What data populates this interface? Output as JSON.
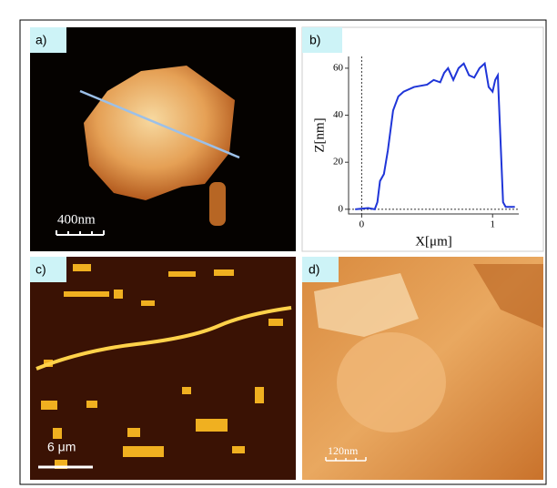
{
  "panels": [
    {
      "label": "a)",
      "scale_bar": "400nm"
    },
    {
      "label": "b)"
    },
    {
      "label": "c)",
      "scale_bar": "6 μm"
    },
    {
      "label": "d)",
      "scale_bar": "120nm"
    }
  ],
  "chart_data": {
    "type": "line",
    "x_label": "X[μm]",
    "y_label": "Z[nm]",
    "color": "#1f35d8",
    "x": [
      -0.05,
      0.05,
      0.1,
      0.12,
      0.14,
      0.17,
      0.2,
      0.24,
      0.28,
      0.32,
      0.4,
      0.5,
      0.55,
      0.6,
      0.63,
      0.66,
      0.7,
      0.74,
      0.78,
      0.82,
      0.86,
      0.9,
      0.94,
      0.97,
      1.0,
      1.02,
      1.04,
      1.06,
      1.08,
      1.1,
      1.17
    ],
    "values": [
      0,
      0.5,
      0,
      3,
      12,
      15,
      25,
      42,
      48,
      50,
      52,
      53,
      55,
      54,
      58,
      60,
      55,
      60,
      62,
      57,
      56,
      60,
      62,
      52,
      50,
      55,
      57,
      30,
      3,
      1,
      1
    ],
    "xlim": [
      -0.1,
      1.2
    ],
    "ylim": [
      -2,
      65
    ],
    "xticks": [
      0,
      1
    ],
    "yticks": [
      0,
      20,
      40,
      60
    ]
  }
}
